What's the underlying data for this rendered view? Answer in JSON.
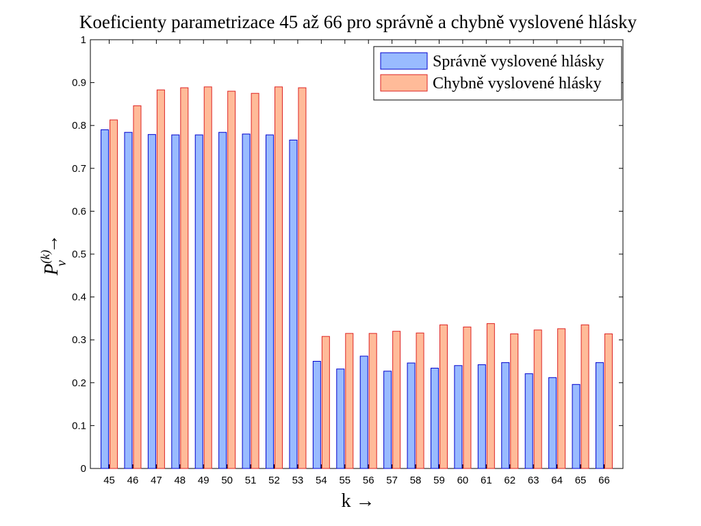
{
  "chart_data": {
    "type": "bar",
    "title": "Koeficienty parametrizace 45 až 66 pro správně a chybně vyslovené hlásky",
    "xlabel": "k →",
    "ylabel_main": "P",
    "ylabel_sup": "(k)",
    "ylabel_sub": "v",
    "ylabel_arrow": "→",
    "categories": [
      "45",
      "46",
      "47",
      "48",
      "49",
      "50",
      "51",
      "52",
      "53",
      "54",
      "55",
      "56",
      "57",
      "58",
      "59",
      "60",
      "61",
      "62",
      "63",
      "64",
      "65",
      "66"
    ],
    "series": [
      {
        "name": "Správně vyslovené hlásky",
        "color": "#99bbff",
        "stroke": "#0000cc",
        "values": [
          0.79,
          0.784,
          0.779,
          0.778,
          0.778,
          0.784,
          0.78,
          0.778,
          0.766,
          0.25,
          0.232,
          0.262,
          0.227,
          0.246,
          0.234,
          0.24,
          0.242,
          0.247,
          0.221,
          0.212,
          0.196,
          0.247
        ]
      },
      {
        "name": "Chybně vyslovené hlásky",
        "color": "#ffbb99",
        "stroke": "#dd2222",
        "values": [
          0.813,
          0.846,
          0.883,
          0.888,
          0.89,
          0.88,
          0.875,
          0.89,
          0.888,
          0.308,
          0.315,
          0.315,
          0.32,
          0.316,
          0.335,
          0.33,
          0.338,
          0.314,
          0.323,
          0.326,
          0.335,
          0.314
        ]
      }
    ],
    "ylim": [
      0,
      1
    ],
    "yticks": [
      "0",
      "0.1",
      "0.2",
      "0.3",
      "0.4",
      "0.5",
      "0.6",
      "0.7",
      "0.8",
      "0.9",
      "1"
    ],
    "legend_position": "top-right",
    "grid": false
  }
}
